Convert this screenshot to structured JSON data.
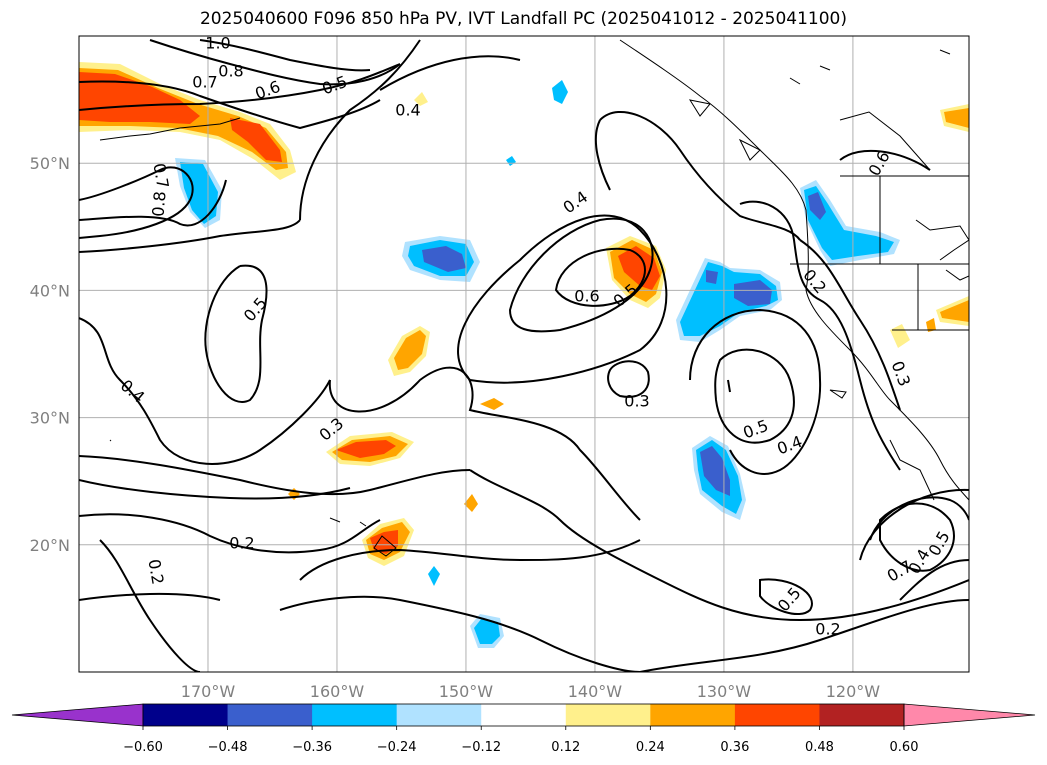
{
  "title": "2025040600 F096 850 hPa PV, IVT Landfall PC (2025041012 - 2025041100)",
  "map": {
    "lon_range": [
      -180,
      -111
    ],
    "lat_range": [
      10,
      60
    ],
    "lon_ticks": [
      {
        "value": -170,
        "label": "170°W"
      },
      {
        "value": -160,
        "label": "160°W"
      },
      {
        "value": -150,
        "label": "150°W"
      },
      {
        "value": -140,
        "label": "140°W"
      },
      {
        "value": -130,
        "label": "130°W"
      },
      {
        "value": -120,
        "label": "120°W"
      }
    ],
    "lat_ticks": [
      {
        "value": 20,
        "label": "20°N"
      },
      {
        "value": 30,
        "label": "30°N"
      },
      {
        "value": 40,
        "label": "40°N"
      },
      {
        "value": 50,
        "label": "50°N"
      }
    ],
    "grid": true,
    "contour_labels": [
      "1.0",
      "0.8",
      "0.7",
      "0.6",
      "0.5",
      "0.4",
      "0.7",
      "0.8",
      "0.5",
      "0.4",
      "0.3",
      "0.2",
      "0.2",
      "0.4",
      "0.6",
      "0.5",
      "0.3",
      "0.5",
      "0.4",
      "0.5",
      "0.2",
      "0.2",
      "0.3",
      "0.7",
      "0.4",
      "0.5",
      "0.6"
    ]
  },
  "colorbar": {
    "ticks": [
      "−0.60",
      "−0.48",
      "−0.36",
      "−0.24",
      "−0.12",
      "0.12",
      "0.24",
      "0.36",
      "0.48",
      "0.60"
    ],
    "colors": [
      "#9932cc",
      "#00008b",
      "#3a5fcd",
      "#00bfff",
      "#b0e2ff",
      "#ffffff",
      "#fff08c",
      "#ffa500",
      "#ff4500",
      "#b22222",
      "#ff88aa"
    ],
    "extend": "both"
  }
}
